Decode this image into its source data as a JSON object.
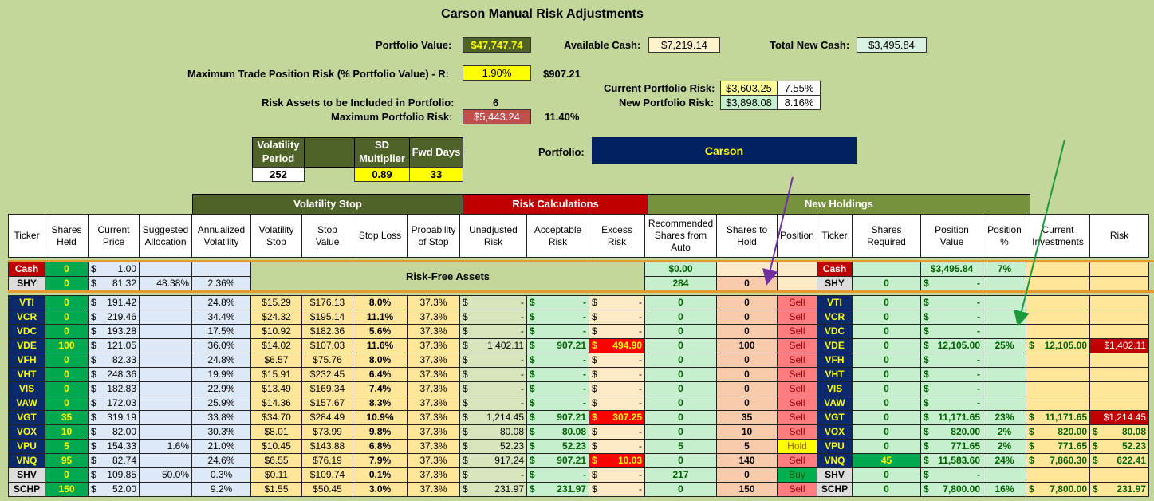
{
  "title": "Carson Manual Risk Adjustments",
  "summary": {
    "portfolio_value_label": "Portfolio Value:",
    "portfolio_value": "$47,747.74",
    "available_cash_label": "Available Cash:",
    "available_cash": "$7,219.14",
    "total_new_cash_label": "Total New Cash:",
    "total_new_cash": "$3,495.84",
    "max_trade_label": "Maximum Trade Position Risk (% Portfolio Value) - R:",
    "max_trade_pct": "1.90%",
    "max_trade_value": "$907.21",
    "risk_assets_label": "Risk Assets to be Included in Portfolio:",
    "risk_assets": "6",
    "max_portfolio_risk_label": "Maximum Portfolio Risk:",
    "max_portfolio_risk": "$5,443.24",
    "max_portfolio_risk_pct": "11.40%",
    "current_risk_label": "Current Portfolio Risk:",
    "current_risk": "$3,603.25",
    "current_risk_pct": "7.55%",
    "new_risk_label": "New Portfolio Risk:",
    "new_risk": "$3,898.08",
    "new_risk_pct": "8.16%",
    "vol_period_label": "Volatility Period",
    "vol_period": "252",
    "sd_mult_label": "SD Multiplier",
    "sd_mult": "0.89",
    "fwd_days_label": "Fwd Days",
    "fwd_days": "33",
    "portfolio_label": "Portfolio:",
    "portfolio_name": "Carson"
  },
  "groups": {
    "vol_stop": "Volatility Stop",
    "risk_calc": "Risk Calculations",
    "new_holdings": "New Holdings",
    "risk_free": "Risk-Free Assets"
  },
  "headers": [
    "Ticker",
    "Shares Held",
    "Current Price",
    "Suggested Allocation",
    "Annualized Volatility",
    "Volatility Stop",
    "Stop Value",
    "Stop Loss",
    "Probability of Stop",
    "Unadjusted Risk",
    "Acceptable Risk",
    "Excess Risk",
    "Recommended Shares from Auto",
    "Shares to Hold",
    "Position",
    "Ticker",
    "Shares Required",
    "Position Value",
    "Position %",
    "Current Investments",
    "Risk"
  ],
  "cash_row": {
    "ticker": "Cash",
    "held": "0",
    "price": "1.00",
    "rec": "$0.00",
    "ticker2": "Cash",
    "pos_value": "$3,495.84",
    "pos_pct": "7%"
  },
  "shy_row": {
    "ticker": "SHY",
    "held": "0",
    "price": "81.32",
    "alloc": "48.38%",
    "vol": "2.36%",
    "rec": "284",
    "hold": "0",
    "ticker2": "SHY",
    "req": "0",
    "pos_value": "-"
  },
  "rows": [
    {
      "t": "VTI",
      "h": "0",
      "p": "191.42",
      "a": "",
      "v": "24.8%",
      "vs": "$15.29",
      "sv": "$176.13",
      "sl": "8.0%",
      "ps": "37.3%",
      "ur": "-",
      "ar": "-",
      "er": "-",
      "erx": false,
      "rec": "0",
      "hold": "0",
      "pos": "Sell",
      "req": "0",
      "pv": "-",
      "pp": "",
      "ci": "",
      "rk": "",
      "rkx": false
    },
    {
      "t": "VCR",
      "h": "0",
      "p": "219.46",
      "a": "",
      "v": "34.4%",
      "vs": "$24.32",
      "sv": "$195.14",
      "sl": "11.1%",
      "ps": "37.3%",
      "ur": "-",
      "ar": "-",
      "er": "-",
      "erx": false,
      "rec": "0",
      "hold": "0",
      "pos": "Sell",
      "req": "0",
      "pv": "-",
      "pp": "",
      "ci": "",
      "rk": "",
      "rkx": false
    },
    {
      "t": "VDC",
      "h": "0",
      "p": "193.28",
      "a": "",
      "v": "17.5%",
      "vs": "$10.92",
      "sv": "$182.36",
      "sl": "5.6%",
      "ps": "37.3%",
      "ur": "-",
      "ar": "-",
      "er": "-",
      "erx": false,
      "rec": "0",
      "hold": "0",
      "pos": "Sell",
      "req": "0",
      "pv": "-",
      "pp": "",
      "ci": "",
      "rk": "",
      "rkx": false
    },
    {
      "t": "VDE",
      "h": "100",
      "p": "121.05",
      "a": "",
      "v": "36.0%",
      "vs": "$14.02",
      "sv": "$107.03",
      "sl": "11.6%",
      "ps": "37.3%",
      "ur": "1,402.11",
      "ar": "907.21",
      "er": "494.90",
      "erx": true,
      "rec": "0",
      "hold": "100",
      "pos": "Sell",
      "req": "0",
      "pv": "12,105.00",
      "pp": "25%",
      "ci": "12,105.00",
      "rk": "$1,402.11",
      "rkx": true
    },
    {
      "t": "VFH",
      "h": "0",
      "p": "82.33",
      "a": "",
      "v": "24.8%",
      "vs": "$6.57",
      "sv": "$75.76",
      "sl": "8.0%",
      "ps": "37.3%",
      "ur": "-",
      "ar": "-",
      "er": "-",
      "erx": false,
      "rec": "0",
      "hold": "0",
      "pos": "Sell",
      "req": "0",
      "pv": "-",
      "pp": "",
      "ci": "",
      "rk": "",
      "rkx": false
    },
    {
      "t": "VHT",
      "h": "0",
      "p": "248.36",
      "a": "",
      "v": "19.9%",
      "vs": "$15.91",
      "sv": "$232.45",
      "sl": "6.4%",
      "ps": "37.3%",
      "ur": "-",
      "ar": "-",
      "er": "-",
      "erx": false,
      "rec": "0",
      "hold": "0",
      "pos": "Sell",
      "req": "0",
      "pv": "-",
      "pp": "",
      "ci": "",
      "rk": "",
      "rkx": false
    },
    {
      "t": "VIS",
      "h": "0",
      "p": "182.83",
      "a": "",
      "v": "22.9%",
      "vs": "$13.49",
      "sv": "$169.34",
      "sl": "7.4%",
      "ps": "37.3%",
      "ur": "-",
      "ar": "-",
      "er": "-",
      "erx": false,
      "rec": "0",
      "hold": "0",
      "pos": "Sell",
      "req": "0",
      "pv": "-",
      "pp": "",
      "ci": "",
      "rk": "",
      "rkx": false
    },
    {
      "t": "VAW",
      "h": "0",
      "p": "172.03",
      "a": "",
      "v": "25.9%",
      "vs": "$14.36",
      "sv": "$157.67",
      "sl": "8.3%",
      "ps": "37.3%",
      "ur": "-",
      "ar": "-",
      "er": "-",
      "erx": false,
      "rec": "0",
      "hold": "0",
      "pos": "Sell",
      "req": "0",
      "pv": "-",
      "pp": "",
      "ci": "",
      "rk": "",
      "rkx": false
    },
    {
      "t": "VGT",
      "h": "35",
      "p": "319.19",
      "a": "",
      "v": "33.8%",
      "vs": "$34.70",
      "sv": "$284.49",
      "sl": "10.9%",
      "ps": "37.3%",
      "ur": "1,214.45",
      "ar": "907.21",
      "er": "307.25",
      "erx": true,
      "rec": "0",
      "hold": "35",
      "pos": "Sell",
      "req": "0",
      "pv": "11,171.65",
      "pp": "23%",
      "ci": "11,171.65",
      "rk": "$1,214.45",
      "rkx": true
    },
    {
      "t": "VOX",
      "h": "10",
      "p": "82.00",
      "a": "",
      "v": "30.3%",
      "vs": "$8.01",
      "sv": "$73.99",
      "sl": "9.8%",
      "ps": "37.3%",
      "ur": "80.08",
      "ar": "80.08",
      "er": "-",
      "erx": false,
      "rec": "0",
      "hold": "10",
      "pos": "Sell",
      "req": "0",
      "pv": "820.00",
      "pp": "2%",
      "ci": "820.00",
      "rk": "80.08",
      "rkx": false
    },
    {
      "t": "VPU",
      "h": "5",
      "p": "154.33",
      "a": "1.6%",
      "v": "21.0%",
      "vs": "$10.45",
      "sv": "$143.88",
      "sl": "6.8%",
      "ps": "37.3%",
      "ur": "52.23",
      "ar": "52.23",
      "er": "-",
      "erx": false,
      "rec": "5",
      "hold": "5",
      "pos": "Hold",
      "req": "0",
      "pv": "771.65",
      "pp": "2%",
      "ci": "771.65",
      "rk": "52.23",
      "rkx": false
    },
    {
      "t": "VNQ",
      "h": "95",
      "p": "82.74",
      "a": "",
      "v": "24.6%",
      "vs": "$6.55",
      "sv": "$76.19",
      "sl": "7.9%",
      "ps": "37.3%",
      "ur": "917.24",
      "ar": "907.21",
      "er": "10.03",
      "erx": true,
      "rec": "0",
      "hold": "140",
      "pos": "Sell",
      "req": "45",
      "pv": "11,583.60",
      "pp": "24%",
      "ci": "7,860.30",
      "rk": "622.41",
      "rkx": false
    },
    {
      "t": "SHV",
      "h": "0",
      "p": "109.85",
      "a": "50.0%",
      "v": "0.3%",
      "vs": "$0.11",
      "sv": "$109.74",
      "sl": "0.1%",
      "ps": "37.3%",
      "ur": "-",
      "ar": "-",
      "er": "-",
      "erx": false,
      "rec": "217",
      "hold": "0",
      "pos": "Buy",
      "req": "0",
      "pv": "-",
      "pp": "",
      "ci": "",
      "rk": "",
      "rkx": false
    },
    {
      "t": "SCHP",
      "h": "150",
      "p": "52.00",
      "a": "",
      "v": "9.2%",
      "vs": "$1.55",
      "sv": "$50.45",
      "sl": "3.0%",
      "ps": "37.3%",
      "ur": "231.97",
      "ar": "231.97",
      "er": "-",
      "erx": false,
      "rec": "0",
      "hold": "150",
      "pos": "Sell",
      "req": "0",
      "pv": "7,800.00",
      "pp": "16%",
      "ci": "7,800.00",
      "rk": "231.97",
      "rkx": false
    }
  ],
  "colors": {
    "bg": "#c4d79b",
    "navy": "#0c2a6b",
    "green": "#00a84f",
    "red": "#c00000",
    "arrow_purple": "#7030a0",
    "arrow_green": "#1a9a3a"
  }
}
